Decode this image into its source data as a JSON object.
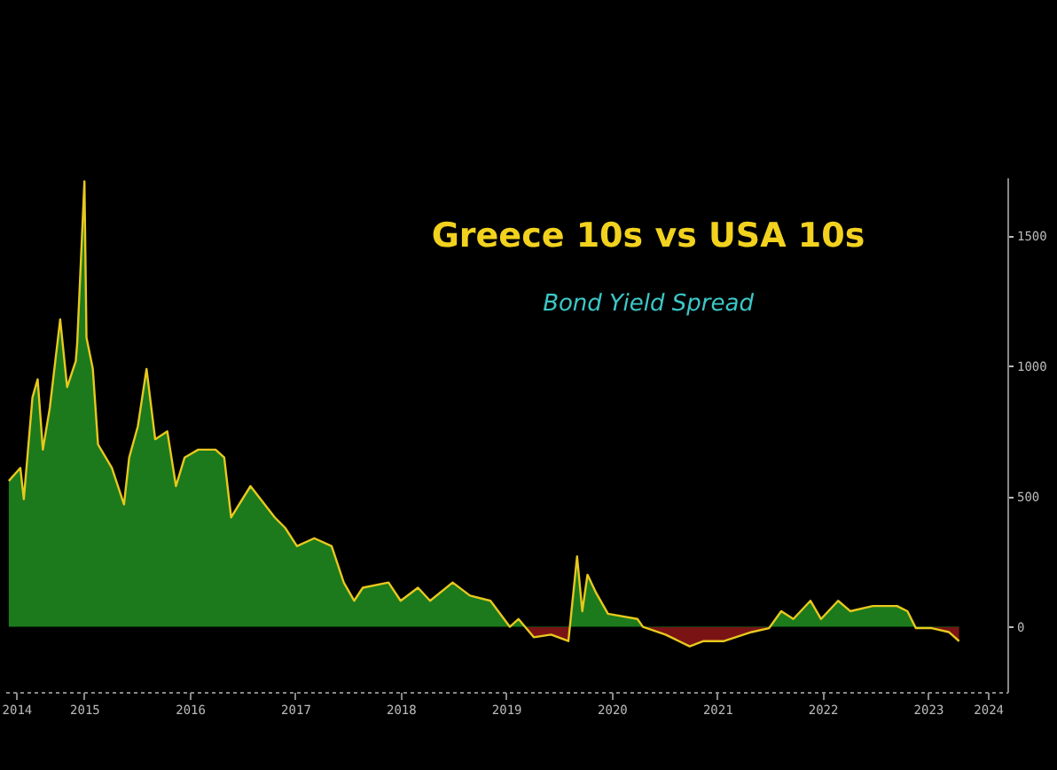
{
  "chart_data": {
    "type": "area",
    "title": "Greece 10s vs USA 10s",
    "subtitle": "Bond Yield Spread",
    "x": [
      "2014-10-13",
      "2014-11-22",
      "2014-12-04",
      "2015-01-03",
      "2015-01-21",
      "2015-02-08",
      "2015-03-04",
      "2015-04-09",
      "2015-05-03",
      "2015-06-02",
      "2015-06-07",
      "2015-07-02",
      "2015-07-09",
      "2015-07-31",
      "2015-08-18",
      "2015-10-05",
      "2015-11-16",
      "2015-12-04",
      "2016-01-03",
      "2016-02-02",
      "2016-03-03",
      "2016-04-14",
      "2016-05-14",
      "2016-06-13",
      "2016-07-30",
      "2016-09-28",
      "2016-10-28",
      "2016-11-21",
      "2017-01-27",
      "2017-04-21",
      "2017-05-27",
      "2017-07-07",
      "2017-09-05",
      "2017-11-04",
      "2017-12-16",
      "2018-01-21",
      "2018-02-20",
      "2018-05-20",
      "2018-07-01",
      "2018-08-30",
      "2018-10-11",
      "2018-12-28",
      "2019-02-26",
      "2019-05-08",
      "2019-07-14",
      "2019-08-13",
      "2019-10-05",
      "2019-12-04",
      "2020-02-02",
      "2020-03-03",
      "2020-03-21",
      "2020-04-08",
      "2020-05-08",
      "2020-06-18",
      "2020-09-28",
      "2020-10-17",
      "2021-01-03",
      "2021-03-28",
      "2021-05-15",
      "2021-07-25",
      "2021-10-29",
      "2021-12-28",
      "2022-02-08",
      "2022-03-22",
      "2022-05-20",
      "2022-06-26",
      "2022-08-24",
      "2022-10-05",
      "2022-12-22",
      "2023-03-16",
      "2023-04-21",
      "2023-05-20",
      "2023-07-14",
      "2023-09-11",
      "2023-10-17"
    ],
    "series": [
      {
        "color": "#1c7a1c",
        "values": [
          560,
          610,
          490,
          880,
          950,
          680,
          840,
          1180,
          920,
          1020,
          1090,
          1710,
          1110,
          990,
          700,
          610,
          470,
          650,
          770,
          990,
          720,
          750,
          540,
          650,
          680,
          680,
          650,
          420,
          540,
          420,
          380,
          310,
          340,
          310,
          170,
          100,
          150,
          170,
          100,
          150,
          100,
          170,
          120,
          100,
          0,
          30,
          -40,
          -30,
          -55,
          270,
          60,
          200,
          130,
          50,
          30,
          0,
          -30,
          -75,
          -55,
          -55,
          -20,
          -5,
          60,
          30,
          100,
          30,
          100,
          60,
          80,
          80,
          60,
          -5,
          -5,
          -20,
          -55
        ]
      }
    ],
    "xlim": [
      "2014-10-01",
      "2024-04-01"
    ],
    "xticks": [
      {
        "value": "2014-11-08",
        "label": "2014"
      },
      {
        "value": "2015-07-01",
        "label": "2015"
      },
      {
        "value": "2016-07-01",
        "label": "2016"
      },
      {
        "value": "2017-07-01",
        "label": "2017"
      },
      {
        "value": "2018-07-01",
        "label": "2018"
      },
      {
        "value": "2019-07-01",
        "label": "2019"
      },
      {
        "value": "2020-07-01",
        "label": "2020"
      },
      {
        "value": "2021-07-01",
        "label": "2021"
      },
      {
        "value": "2022-07-01",
        "label": "2022"
      },
      {
        "value": "2023-07-01",
        "label": "2023"
      },
      {
        "value": "2024-01-25",
        "label": "2024"
      }
    ],
    "ylim": [
      -250,
      1725
    ],
    "yticks": [
      0,
      500,
      1000,
      1500
    ]
  }
}
